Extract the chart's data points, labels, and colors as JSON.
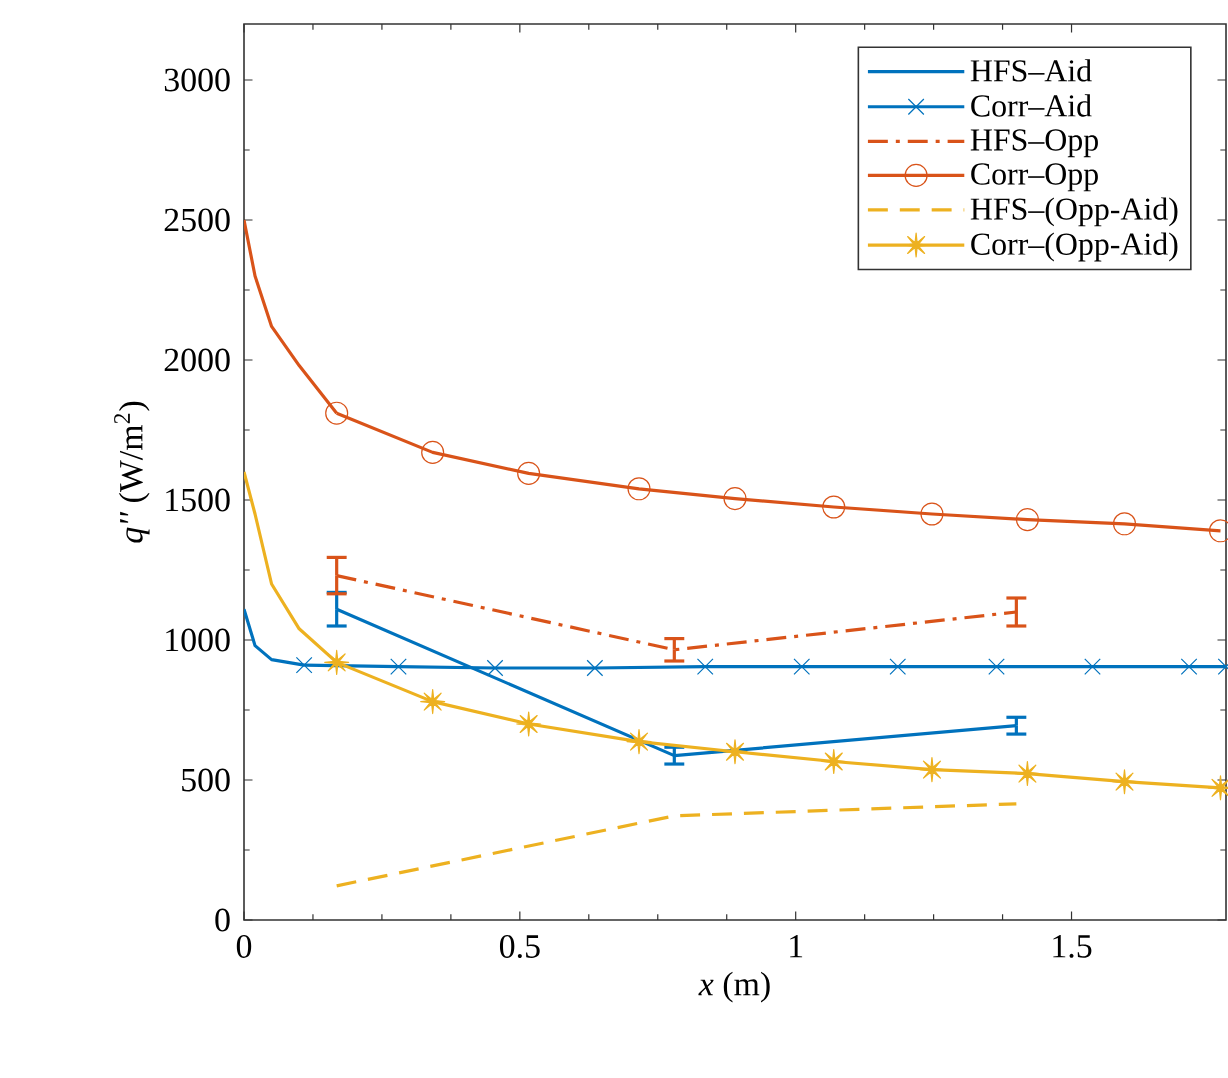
{
  "chart_data": {
    "type": "line",
    "xlabel": "*x* (m)",
    "ylabel": "*q''* (W/m$^{2}$)",
    "xlim": [
      0,
      1.78
    ],
    "xticks": [
      0,
      0.5,
      1,
      1.5
    ],
    "ylim": [
      0,
      3200
    ],
    "yticks": [
      0,
      500,
      1000,
      1500,
      2000,
      2500,
      3000
    ],
    "grid": false,
    "legend": "top right",
    "series": [
      {
        "name": "HFS–Aid",
        "color": "#0072bd",
        "line_style": "solid",
        "marker": "none",
        "x": [
          0.168,
          0.78,
          1.4
        ],
        "values": [
          1110,
          587,
          694
        ],
        "errors": [
          60,
          30,
          30
        ]
      },
      {
        "name": "Corr–Aid",
        "color": "#0072bd",
        "line_style": "solid",
        "marker": "cross",
        "x": [
          0.109,
          0.28,
          0.455,
          0.636,
          0.836,
          1.011,
          1.185,
          1.364,
          1.538,
          1.713,
          1.78
        ],
        "values": [
          910,
          905,
          900,
          900,
          905,
          905,
          905,
          905,
          905,
          905,
          905
        ]
      },
      {
        "color": "#0072bd",
        "line_style": "solid",
        "marker": "none",
        "x": [
          0,
          0.02,
          0.05,
          0.109
        ],
        "values": [
          1110,
          980,
          930,
          910
        ]
      },
      {
        "name": "HFS–Opp",
        "color": "#d95319",
        "line_style": "dashdot",
        "marker": "none",
        "x": [
          0.168,
          0.78,
          1.4
        ],
        "values": [
          1230,
          965,
          1100
        ],
        "errors": [
          65,
          40,
          50
        ]
      },
      {
        "name": "Corr–Opp",
        "color": "#d95319",
        "line_style": "solid",
        "marker": "circle",
        "x": [
          0.168,
          0.342,
          0.516,
          0.716,
          0.89,
          1.069,
          1.247,
          1.42,
          1.596,
          1.77
        ],
        "values": [
          1810,
          1670,
          1595,
          1540,
          1505,
          1475,
          1450,
          1430,
          1415,
          1390
        ]
      },
      {
        "color": "#d95319",
        "line_style": "solid",
        "marker": "none",
        "x": [
          0,
          0.02,
          0.05,
          0.1,
          0.168
        ],
        "values": [
          2500,
          2300,
          2120,
          1980,
          1810
        ]
      },
      {
        "name": "HFS–(Opp-Aid)",
        "color": "#edb120",
        "line_style": "dashed",
        "marker": "none",
        "x": [
          0.168,
          0.78,
          1.4
        ],
        "values": [
          122,
          372,
          415
        ]
      },
      {
        "name": "Corr–(Opp-Aid)",
        "color": "#edb120",
        "line_style": "solid",
        "marker": "star",
        "x": [
          0.168,
          0.342,
          0.516,
          0.716,
          0.89,
          1.069,
          1.247,
          1.42,
          1.596,
          1.77
        ],
        "values": [
          920,
          780,
          700,
          637,
          601,
          566,
          537,
          523,
          494,
          472
        ]
      },
      {
        "color": "#edb120",
        "line_style": "solid",
        "marker": "none",
        "x": [
          0,
          0.02,
          0.05,
          0.1,
          0.168
        ],
        "values": [
          1600,
          1450,
          1200,
          1040,
          920
        ]
      }
    ]
  }
}
